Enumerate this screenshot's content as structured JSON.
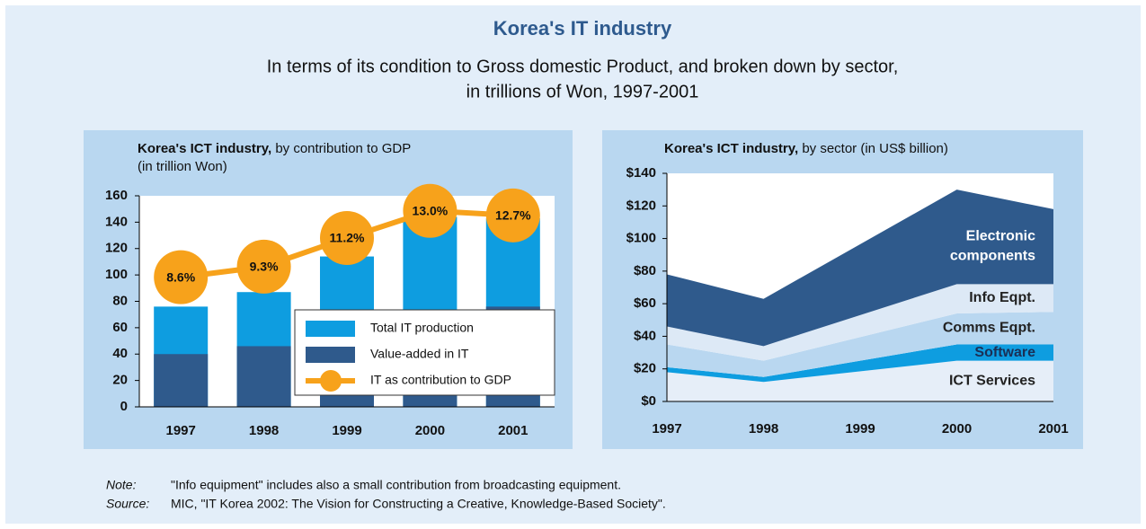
{
  "title": "Korea's IT industry",
  "subtitle": [
    "In terms of its condition to Gross domestic Product, and broken down by sector,",
    "in trillions of Won, 1997-2001"
  ],
  "note": {
    "label": "Note:",
    "text": "\"Info equipment\" includes also a small contribution from broadcasting equipment."
  },
  "source": {
    "label": "Source:",
    "text": "MIC, \"IT Korea 2002: The Vision for Constructing a Creative, Knowledge-Based Society\"."
  },
  "chart_data": [
    {
      "type": "bar",
      "title": "Korea's ICT industry,",
      "title_rest": " by contribution to GDP",
      "subtitle": "(in trillion Won)",
      "categories": [
        "1997",
        "1998",
        "1999",
        "2000",
        "2001"
      ],
      "ylim": [
        0,
        160
      ],
      "yticks": [
        0,
        20,
        40,
        60,
        80,
        100,
        120,
        140,
        160
      ],
      "y2lim": [
        0,
        14
      ],
      "legend": "lower right",
      "series": [
        {
          "name": "Total IT production",
          "color": "#0e9de0",
          "values": [
            76,
            87,
            114,
            144,
            143
          ]
        },
        {
          "name": "Value-added in IT",
          "color": "#2f5a8c",
          "values": [
            40,
            46,
            55,
            70,
            76
          ]
        },
        {
          "name": "IT as contribution to GDP",
          "type": "line",
          "axis": "y2",
          "color": "#f7a21b",
          "values": [
            8.6,
            9.3,
            11.2,
            13.0,
            12.7
          ],
          "value_labels": [
            "8.6%",
            "9.3%",
            "11.2%",
            "13.0%",
            "12.7%"
          ]
        }
      ]
    },
    {
      "type": "area",
      "stacked": true,
      "title": "Korea's ICT industry,",
      "title_rest": " by sector (in US$ billion)",
      "x": [
        1997,
        1998,
        2000,
        2001
      ],
      "xlim": [
        1997,
        2001
      ],
      "xticks": [
        1997,
        1998,
        1999,
        2000,
        2001
      ],
      "ylim": [
        0,
        140
      ],
      "yticks": [
        {
          "value": 0,
          "label": "$0"
        },
        {
          "value": 20,
          "label": "$20"
        },
        {
          "value": 40,
          "label": "$40"
        },
        {
          "value": 60,
          "label": "$60"
        },
        {
          "value": 80,
          "label": "$80"
        },
        {
          "value": 100,
          "label": "$100"
        },
        {
          "value": 120,
          "label": "$120"
        },
        {
          "value": 140,
          "label": "$140"
        }
      ],
      "series": [
        {
          "name": "ICT Services",
          "color": "#e6eef8",
          "values": [
            18,
            12,
            25,
            25
          ]
        },
        {
          "name": "Software",
          "color": "#0e9de0",
          "values": [
            3,
            3,
            10,
            10
          ]
        },
        {
          "name": "Comms Eqpt.",
          "color": "#b9d7f0",
          "values": [
            14,
            10,
            19,
            20
          ]
        },
        {
          "name": "Info Eqpt.",
          "color": "#dde9f6",
          "values": [
            11,
            9,
            18,
            17
          ]
        },
        {
          "name": "Electronic components",
          "color": "#2f5a8c",
          "values": [
            32,
            29,
            58,
            46
          ]
        }
      ]
    }
  ]
}
